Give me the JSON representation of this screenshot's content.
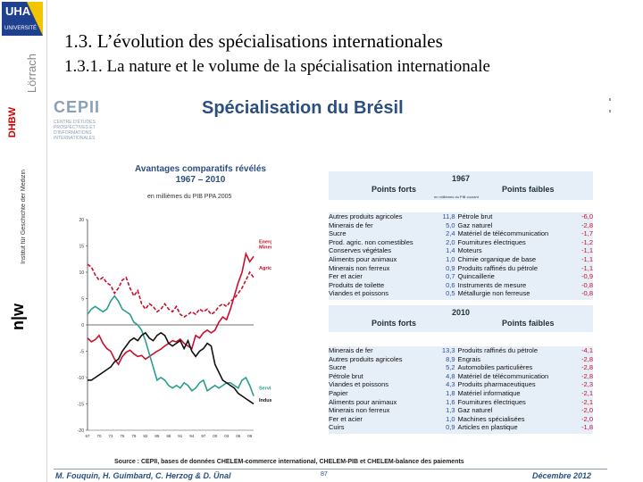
{
  "sidebar": {
    "logo_text": "UHA",
    "logo_sub": "UNIVERSITÉ",
    "lorrach": "Lörrach",
    "dhbw": "DHBW",
    "institute": "Institut für Geschichte der Medizin",
    "nw_logo": "n|w"
  },
  "header": {
    "title": "1.3. L’évolution des spécialisations internationales",
    "subtitle": "1.3.1. La nature et le volume de la spécialisation internationale"
  },
  "slide": {
    "cepii_logo": "CEPII",
    "cepii_tagline": "CENTRE D'ÉTUDES PROSPECTIVES ET D'INFORMATIONS INTERNATIONALES",
    "title": "Spécialisation du Brésil",
    "source": "Source : CEPII, bases de données CHELEM-commerce international, CHELEM-PIB et CHELEM-balance des paiements",
    "authors": "M. Fouquin, H. Guimbard, C. Herzog & D. Ünal",
    "page": "87",
    "date": "Décembre 2012"
  },
  "chart_data": {
    "type": "line",
    "title": "Avantages comparatifs révélés",
    "subtitle": "1967 – 2010",
    "unit_note": "en millièmes du PIB PPA 2005",
    "x": [
      1967,
      1968,
      1969,
      1970,
      1971,
      1972,
      1973,
      1974,
      1975,
      1976,
      1977,
      1978,
      1979,
      1980,
      1981,
      1982,
      1983,
      1984,
      1985,
      1986,
      1987,
      1988,
      1989,
      1990,
      1991,
      1992,
      1993,
      1994,
      1995,
      1996,
      1997,
      1998,
      1999,
      2000,
      2001,
      2002,
      2003,
      2004,
      2005,
      2006,
      2007,
      2008,
      2009,
      2010
    ],
    "xticks": [
      "67",
      "70",
      "73",
      "76",
      "79",
      "82",
      "85",
      "88",
      "91",
      "94",
      "97",
      "00",
      "03",
      "06",
      "09"
    ],
    "ylim": [
      -20,
      20
    ],
    "yticks": [
      20,
      15,
      10,
      5,
      0,
      -5,
      -10,
      -15,
      -20
    ],
    "series": [
      {
        "name": "Energie Minerais",
        "color": "#c8102e",
        "values": [
          -2.5,
          -3.2,
          -2.8,
          -2.0,
          -3.5,
          -4.5,
          -5.0,
          -6.5,
          -7.5,
          -6.0,
          -5.2,
          -4.8,
          -5.5,
          -6.0,
          -5.8,
          -6.5,
          -6.0,
          -5.5,
          -5.0,
          -4.6,
          -4.0,
          -3.5,
          -3.0,
          -3.2,
          -2.7,
          -3.5,
          -4.0,
          -4.5,
          -2.0,
          -2.5,
          -1.5,
          -1.0,
          -1.5,
          -1.0,
          0.5,
          1.5,
          1.0,
          3.0,
          5.5,
          8.0,
          10.0,
          13.5,
          12.0,
          13.0
        ]
      },
      {
        "name": "Agriculture",
        "color": "#c8102e",
        "dashed": true,
        "values": [
          11.5,
          11.0,
          9.5,
          8.5,
          9.0,
          8.0,
          7.5,
          6.0,
          7.0,
          8.5,
          9.0,
          7.0,
          5.5,
          6.5,
          4.0,
          3.0,
          4.0,
          3.5,
          2.5,
          3.0,
          4.0,
          3.0,
          2.5,
          3.5,
          2.0,
          1.5,
          2.0,
          2.5,
          2.0,
          3.0,
          2.5,
          3.0,
          2.0,
          2.5,
          3.5,
          4.0,
          3.5,
          4.5,
          5.0,
          6.0,
          7.0,
          8.5,
          10.0,
          9.0
        ]
      },
      {
        "name": "Services",
        "color": "#2a9d8f",
        "values": [
          2.0,
          3.0,
          3.5,
          3.0,
          2.5,
          3.0,
          4.5,
          5.5,
          4.5,
          3.0,
          2.5,
          2.0,
          0.5,
          0.0,
          -1.0,
          -3.0,
          -5.5,
          -8.0,
          -10.5,
          -10.0,
          -10.5,
          -11.5,
          -12.0,
          -11.5,
          -12.0,
          -11.0,
          -11.5,
          -12.5,
          -12.0,
          -11.0,
          -10.5,
          -12.5,
          -12.0,
          -11.5,
          -12.0,
          -11.5,
          -11.0,
          -11.0,
          -11.5,
          -12.0,
          -10.5,
          -10.0,
          -11.5,
          -13.5
        ]
      },
      {
        "name": "Industrie",
        "color": "#111111",
        "values": [
          -10.5,
          -10.5,
          -10.0,
          -9.5,
          -9.0,
          -8.5,
          -8.0,
          -7.0,
          -6.5,
          -5.0,
          -4.0,
          -3.0,
          -2.5,
          -3.0,
          -2.0,
          -1.5,
          -2.5,
          -3.0,
          -2.0,
          -1.5,
          -2.0,
          -3.5,
          -4.0,
          -3.5,
          -3.0,
          -4.5,
          -3.0,
          -5.0,
          -6.0,
          -5.0,
          -4.5,
          -3.5,
          -4.0,
          -7.5,
          -9.0,
          -10.5,
          -11.0,
          -11.5,
          -12.0,
          -13.0,
          -13.5,
          -14.0,
          -14.5,
          -15.0
        ]
      }
    ]
  },
  "tables": {
    "note": "en millièmes du PIB courant",
    "header_strong": "Points forts",
    "header_weak": "Points faibles",
    "t1967": {
      "year": "1967",
      "rows": [
        [
          "Autres produits agricoles",
          "11,8",
          "Pétrole brut",
          "-6,0"
        ],
        [
          "Minerais de fer",
          "5,0",
          "Gaz naturel",
          "-2,8"
        ],
        [
          "Sucre",
          "2,4",
          "Matériel de télécommunication",
          "-1,7"
        ],
        [
          "Prod. agric. non comestibles",
          "2,0",
          "Fournitures électriques",
          "-1,2"
        ],
        [
          "Conserves végétales",
          "1,4",
          "Moteurs",
          "-1,1"
        ],
        [
          "Aliments pour animaux",
          "1,0",
          "Chimie organique de base",
          "-1,1"
        ],
        [
          "Minerais non ferreux",
          "0,9",
          "Produits raffinés du pétrole",
          "-1,1"
        ],
        [
          "Fer et acier",
          "0,7",
          "Quincaillerie",
          "-0,9"
        ],
        [
          "Produits de toilette",
          "0,6",
          "Instruments de mesure",
          "-0,8"
        ],
        [
          "Viandes et poissons",
          "0,5",
          "Métallurgie non ferreuse",
          "-0,8"
        ]
      ]
    },
    "t2010": {
      "year": "2010",
      "rows": [
        [
          "Minerais de fer",
          "13,3",
          "Produits raffinés du pétrole",
          "-4,1"
        ],
        [
          "Autres produits agricoles",
          "8,9",
          "Engrais",
          "-2,8"
        ],
        [
          "Sucre",
          "5,2",
          "Automobiles particulières",
          "-2,8"
        ],
        [
          "Pétrole brut",
          "4,8",
          "Matériel de télécommunication",
          "-2,8"
        ],
        [
          "Viandes et poissons",
          "4,3",
          "Produits pharmaceutiques",
          "-2,3"
        ],
        [
          "Papier",
          "1,8",
          "Matériel informatique",
          "-2,1"
        ],
        [
          "Aliments pour animaux",
          "1,6",
          "Fournitures électriques",
          "-2,1"
        ],
        [
          "Minerais non ferreux",
          "1,3",
          "Gaz naturel",
          "-2,0"
        ],
        [
          "Fer et acier",
          "1,0",
          "Machines spécialisées",
          "-2,0"
        ],
        [
          "Cuirs",
          "0,9",
          "Articles en plastique",
          "-1,8"
        ]
      ]
    }
  }
}
